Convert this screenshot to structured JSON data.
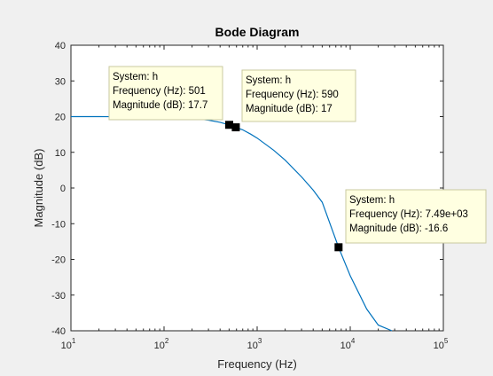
{
  "chart_data": {
    "type": "line",
    "title": "Bode Diagram",
    "xlabel": "Frequency  (Hz)",
    "ylabel": "Magnitude (dB)",
    "xscale": "log",
    "xlim": [
      10,
      100000
    ],
    "ylim": [
      -40,
      40
    ],
    "x_ticks": [
      {
        "base": "10",
        "exp": "1"
      },
      {
        "base": "10",
        "exp": "2"
      },
      {
        "base": "10",
        "exp": "3"
      },
      {
        "base": "10",
        "exp": "4"
      },
      {
        "base": "10",
        "exp": "5"
      }
    ],
    "y_ticks": [
      "40",
      "30",
      "20",
      "10",
      "0",
      "-10",
      "-20",
      "-30",
      "-40"
    ],
    "y_tick_values": [
      40,
      30,
      20,
      10,
      0,
      -10,
      -20,
      -30,
      -40
    ],
    "grid": false,
    "line_color": "#0072bd",
    "series": [
      {
        "x": [
          10,
          20,
          50,
          100,
          150,
          200,
          300,
          400,
          501,
          590,
          700,
          850,
          1000,
          1500,
          2000,
          3000,
          4000,
          5000,
          7490,
          10000,
          15000,
          20000,
          28000
        ],
        "y": [
          20,
          20,
          19.98,
          19.9,
          19.75,
          19.6,
          19.0,
          18.4,
          17.7,
          17.0,
          16.3,
          15.1,
          14.0,
          10.6,
          7.8,
          3.1,
          -0.6,
          -4.0,
          -16.6,
          -24.6,
          -33.9,
          -38.4,
          -40
        ]
      }
    ],
    "datatips": [
      {
        "x": 501,
        "y": 17.7,
        "lines": [
          "System: h",
          "Frequency (Hz): 501",
          "Magnitude (dB): 17.7"
        ]
      },
      {
        "x": 590,
        "y": 17,
        "lines": [
          "System: h",
          "Frequency (Hz): 590",
          "Magnitude (dB): 17"
        ]
      },
      {
        "x": 7490,
        "y": -16.6,
        "lines": [
          "System: h",
          "Frequency (Hz): 7.49e+03",
          "Magnitude (dB): -16.6"
        ]
      }
    ]
  }
}
